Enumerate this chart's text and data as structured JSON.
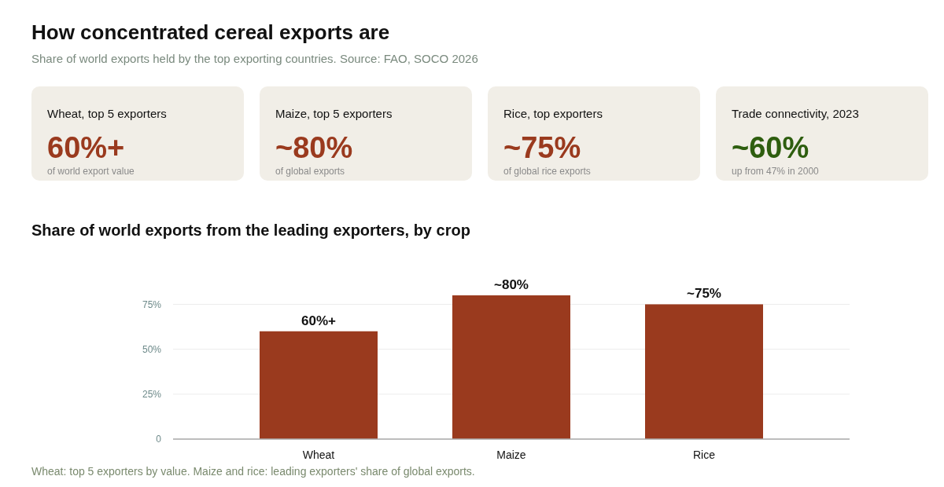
{
  "chart_data": [
    {
      "type": "other",
      "title": "How concentrated cereal exports are",
      "subtitle": "Share of world exports held by the top exporting countries. Source: FAO, SOCO 2026"
    },
    {
      "type": "other",
      "title": "Wheat, top 5 exporters",
      "annotations": [
        "60%+",
        "of world export value"
      ],
      "color": "#9a3a1e"
    },
    {
      "type": "other",
      "title": "Maize, top 5 exporters",
      "annotations": [
        "~80%",
        "of global exports"
      ],
      "color": "#9a3a1e"
    },
    {
      "type": "other",
      "title": "Rice, top exporters",
      "annotations": [
        "~75%",
        "of global rice exports"
      ],
      "color": "#9a3a1e"
    },
    {
      "type": "other",
      "title": "Trade connectivity, 2023",
      "annotations": [
        "~60%",
        "up from 47% in 2000"
      ],
      "color": "#2e5e0f"
    },
    {
      "type": "bar",
      "title": "Share of world exports from the leading exporters, by crop",
      "categories": [
        "Wheat",
        "Maize",
        "Rice"
      ],
      "values": [
        60,
        80,
        75
      ],
      "value_labels": [
        "60%+",
        "~80%",
        "~75%"
      ],
      "color": "#9a3a1e",
      "ylim": [
        0,
        80
      ],
      "yticks": [
        0,
        {
          "value": 25,
          "label": "25%"
        },
        {
          "value": 50,
          "label": "50%"
        },
        {
          "value": 75,
          "label": "75%"
        }
      ],
      "grid": "y",
      "annotations": [
        "Wheat: top 5 exporters by value. Maize and rice: leading exporters' share of global exports."
      ]
    }
  ]
}
